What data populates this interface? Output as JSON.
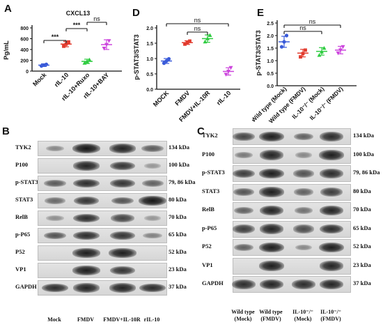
{
  "panel_labels": {
    "A": "A",
    "B": "B",
    "C": "C",
    "D": "D",
    "E": "E"
  },
  "chart_data": [
    {
      "panel": "A",
      "type": "scatter",
      "title": "CXCL13",
      "ylabel": "Pg/mL",
      "ylim": [
        0,
        800
      ],
      "yticks": [
        "0",
        "200",
        "400",
        "600",
        "800"
      ],
      "categories": [
        "Mock",
        "rIL-10",
        "rIL-10+Ruxo",
        "rIL-10+BAY"
      ],
      "colors": [
        "#3a5bd9",
        "#e23b2e",
        "#2ecc40",
        "#cc44dd"
      ],
      "mean": [
        110,
        500,
        180,
        490
      ],
      "sd": [
        25,
        50,
        40,
        90
      ],
      "points": [
        [
          95,
          110,
          125
        ],
        [
          460,
          500,
          540
        ],
        [
          150,
          180,
          210
        ],
        [
          420,
          490,
          560
        ]
      ],
      "annotations": [
        {
          "from": 0,
          "to": 1,
          "text": "***"
        },
        {
          "from": 1,
          "to": 2,
          "text": "***"
        },
        {
          "from": 2,
          "to": 3,
          "text": "ns"
        }
      ]
    },
    {
      "panel": "D",
      "type": "scatter",
      "ylabel": "p-STAT3/STAT3",
      "ylim": [
        0,
        2.0
      ],
      "yticks": [
        "0.0",
        "0.5",
        "1.0",
        "1.5",
        "2.0"
      ],
      "categories": [
        "MOCK",
        "FMDV",
        "FMDV+IL-10R",
        "rIL-10"
      ],
      "colors": [
        "#3a5bd9",
        "#e23b2e",
        "#2ecc40",
        "#cc44dd"
      ],
      "mean": [
        0.92,
        1.52,
        1.65,
        0.58
      ],
      "sd": [
        0.08,
        0.06,
        0.12,
        0.12
      ],
      "points": [
        [
          0.85,
          0.92,
          0.99
        ],
        [
          1.47,
          1.52,
          1.57
        ],
        [
          1.55,
          1.65,
          1.76
        ],
        [
          0.48,
          0.58,
          0.7
        ]
      ],
      "annotations": [
        {
          "from": 1,
          "to": 2,
          "text": "ns"
        },
        {
          "from": 0,
          "to": 3,
          "text": "ns"
        }
      ]
    },
    {
      "panel": "E",
      "type": "scatter",
      "ylabel": "p-STAT3/STAT3",
      "ylim": [
        0,
        2.5
      ],
      "yticks": [
        "0.0",
        "0.5",
        "1.0",
        "1.5",
        "2.0",
        "2.5"
      ],
      "categories": [
        "Wild type (Mock)",
        "Wild type (FMDV)",
        "IL-10⁻/⁻ (Mock)",
        "IL-10⁻/⁻ (FMDV)"
      ],
      "colors": [
        "#3a5bd9",
        "#e23b2e",
        "#2ecc40",
        "#cc44dd"
      ],
      "mean": [
        1.75,
        1.3,
        1.37,
        1.42
      ],
      "sd": [
        0.22,
        0.15,
        0.15,
        0.15
      ],
      "points": [
        [
          1.55,
          1.75,
          2.0
        ],
        [
          1.15,
          1.28,
          1.42
        ],
        [
          1.22,
          1.35,
          1.5
        ],
        [
          1.3,
          1.42,
          1.55
        ]
      ],
      "annotations": [
        {
          "from": 0,
          "to": 2,
          "text": "ns"
        },
        {
          "from": 0,
          "to": 3,
          "text": "ns"
        }
      ]
    }
  ],
  "blot_B": {
    "lanes": [
      "Mock",
      "FMDV",
      "FMDV+IL-10R",
      "rIL-10"
    ],
    "rows": [
      {
        "name": "TYK2",
        "kda": "134 kDa",
        "intensity": [
          0.25,
          1.0,
          0.9,
          0.55
        ]
      },
      {
        "name": "P100",
        "kda": "100 kDa",
        "intensity": [
          0.0,
          0.9,
          0.8,
          0.15
        ]
      },
      {
        "name": "p-STAT3",
        "kda": "79, 86 kDa",
        "intensity": [
          0.55,
          0.85,
          0.8,
          0.5
        ]
      },
      {
        "name": "STAT3",
        "kda": "80 kDa",
        "intensity": [
          0.45,
          0.8,
          0.6,
          1.0
        ]
      },
      {
        "name": "RelB",
        "kda": "70 kDa",
        "intensity": [
          0.2,
          0.85,
          0.7,
          0.15
        ]
      },
      {
        "name": "p-P65",
        "kda": "65 kDa",
        "intensity": [
          0.6,
          0.85,
          0.8,
          0.3
        ]
      },
      {
        "name": "P52",
        "kda": "52 kDa",
        "intensity": [
          0.0,
          0.95,
          0.95,
          0.0
        ]
      },
      {
        "name": "VP1",
        "kda": "23 kDa",
        "intensity": [
          0.0,
          0.95,
          0.8,
          0.0
        ]
      },
      {
        "name": "GAPDH",
        "kda": "37 kDa",
        "intensity": [
          0.85,
          0.9,
          0.9,
          0.85
        ]
      }
    ]
  },
  "blot_C": {
    "lanes": [
      "Wild type\n(Mock)",
      "Wild type\n(FMDV)",
      "IL-10⁻/⁻\n(Mock)",
      "IL-10⁻/⁻\n(FMDV)"
    ],
    "rows": [
      {
        "name": "TYK2",
        "kda": "134 kDa",
        "intensity": [
          0.7,
          0.95,
          0.5,
          0.85
        ]
      },
      {
        "name": "P100",
        "kda": "100 kDa",
        "intensity": [
          0.35,
          0.9,
          0.25,
          0.95
        ]
      },
      {
        "name": "p-STAT3",
        "kda": "79, 86 kDa",
        "intensity": [
          0.75,
          0.95,
          0.6,
          0.85
        ]
      },
      {
        "name": "STAT3",
        "kda": "80 kDa",
        "intensity": [
          0.6,
          0.95,
          0.5,
          0.75
        ]
      },
      {
        "name": "RelB",
        "kda": "70 kDa",
        "intensity": [
          0.5,
          0.9,
          0.4,
          0.9
        ]
      },
      {
        "name": "p-P65",
        "kda": "65 kDa",
        "intensity": [
          0.75,
          0.9,
          0.65,
          0.85
        ]
      },
      {
        "name": "P52",
        "kda": "52 kDa",
        "intensity": [
          0.5,
          0.95,
          0.25,
          0.95
        ]
      },
      {
        "name": "VP1",
        "kda": "23 kDa",
        "intensity": [
          0.0,
          0.95,
          0.0,
          0.9
        ]
      },
      {
        "name": "GAPDH",
        "kda": "37 kDa",
        "intensity": [
          0.85,
          0.9,
          0.85,
          0.9
        ]
      }
    ]
  }
}
